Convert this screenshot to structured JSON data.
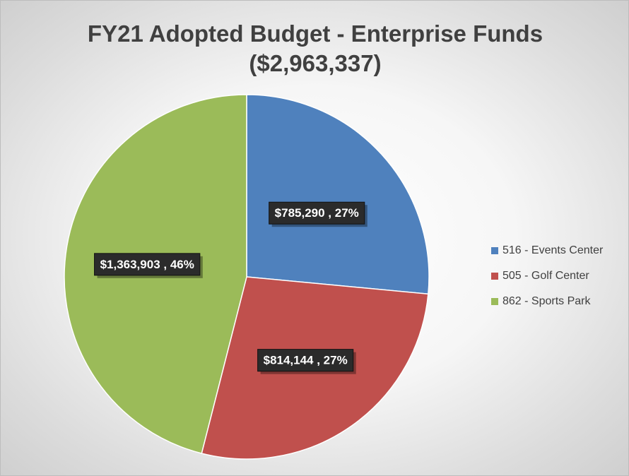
{
  "chart_data": {
    "type": "pie",
    "title": "FY21 Adopted Budget - Enterprise Funds",
    "subtitle": "($2,963,337)",
    "slices": [
      {
        "name": "516 - Events Center",
        "value": 785290,
        "percent": 27,
        "label": "$785,290 , 27%",
        "color": "#4f81bd"
      },
      {
        "name": "505 - Golf Center",
        "value": 814144,
        "percent": 27,
        "label": "$814,144 , 27%",
        "color": "#c0504d"
      },
      {
        "name": "862 - Sports Park",
        "value": 1363903,
        "percent": 46,
        "label": "$1,363,903 , 46%",
        "color": "#9bbb59"
      }
    ],
    "legend_position": "right",
    "start_angle": "12 o'clock",
    "direction": "clockwise"
  },
  "legend": {
    "items": [
      {
        "label": "516 - Events Center",
        "color": "#4f81bd"
      },
      {
        "label": "505 - Golf Center",
        "color": "#c0504d"
      },
      {
        "label": "862 - Sports Park",
        "color": "#9bbb59"
      }
    ]
  }
}
